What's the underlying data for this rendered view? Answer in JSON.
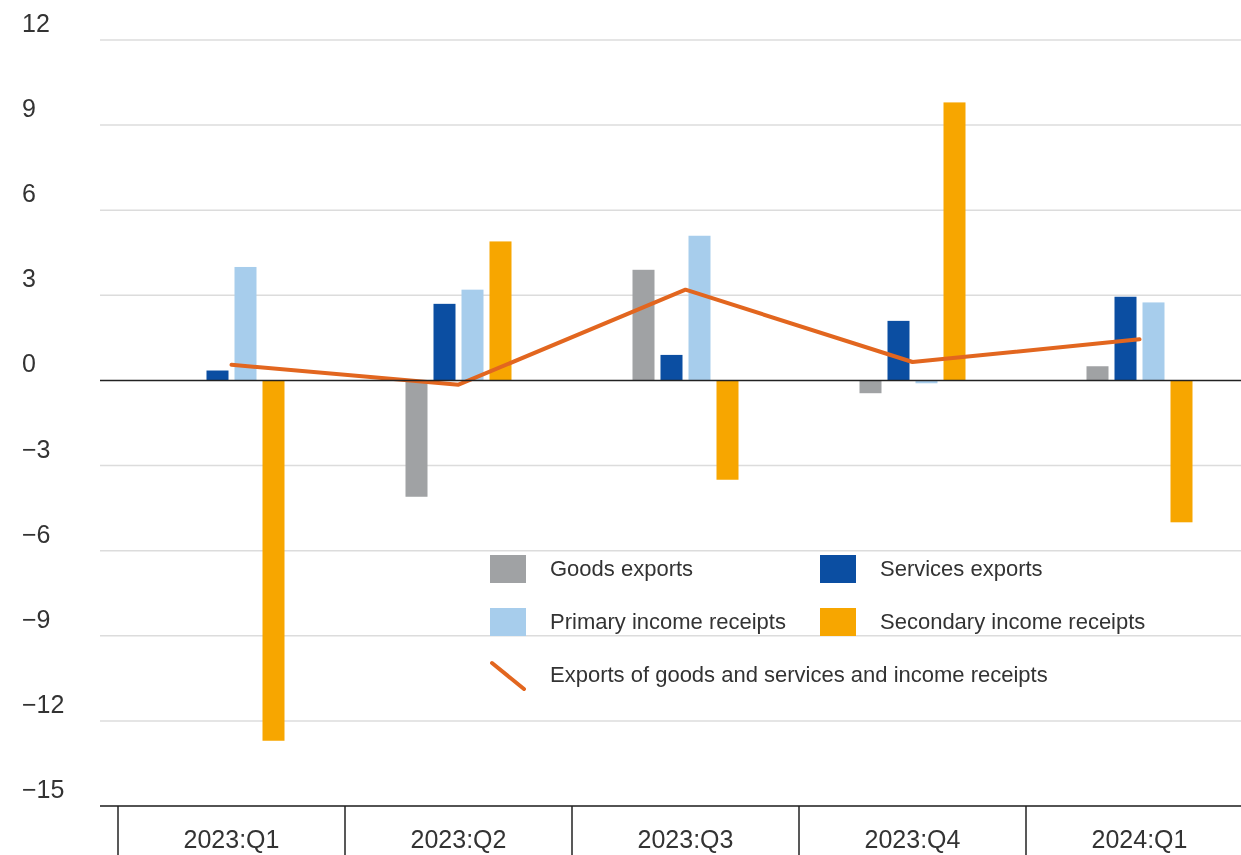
{
  "chart_data": {
    "type": "bar",
    "categories": [
      "2023:Q1",
      "2023:Q2",
      "2023:Q3",
      "2023:Q4",
      "2024:Q1"
    ],
    "series": [
      {
        "name": "Goods exports",
        "color": "#a0a2a4",
        "values": [
          0,
          -4.1,
          3.9,
          -0.45,
          0.5
        ]
      },
      {
        "name": "Services exports",
        "color": "#0b4ea2",
        "values": [
          0.35,
          2.7,
          0.9,
          2.1,
          2.95
        ]
      },
      {
        "name": "Primary income receipts",
        "color": "#a7cdec",
        "values": [
          4.0,
          3.2,
          5.1,
          -0.1,
          2.75
        ]
      },
      {
        "name": "Secondary income receipts",
        "color": "#f7a600",
        "values": [
          -12.7,
          4.9,
          -3.5,
          9.8,
          -5.0
        ]
      },
      {
        "name": "Exports of goods and services and income receipts",
        "color": "#e2661f",
        "type": "line",
        "values": [
          0.55,
          -0.15,
          3.2,
          0.65,
          1.45
        ]
      }
    ],
    "ylim": [
      -15,
      12
    ],
    "yticks": [
      12,
      9,
      6,
      3,
      0,
      {
        "value": -3,
        "label": "−3"
      },
      {
        "value": -6,
        "label": "−6"
      },
      {
        "value": -9,
        "label": "−9"
      },
      {
        "value": -12,
        "label": "−12"
      },
      {
        "value": -15,
        "label": "−15"
      }
    ],
    "grid": "y",
    "legend": "bottom right",
    "marker": "none",
    "line_style": "solid"
  }
}
